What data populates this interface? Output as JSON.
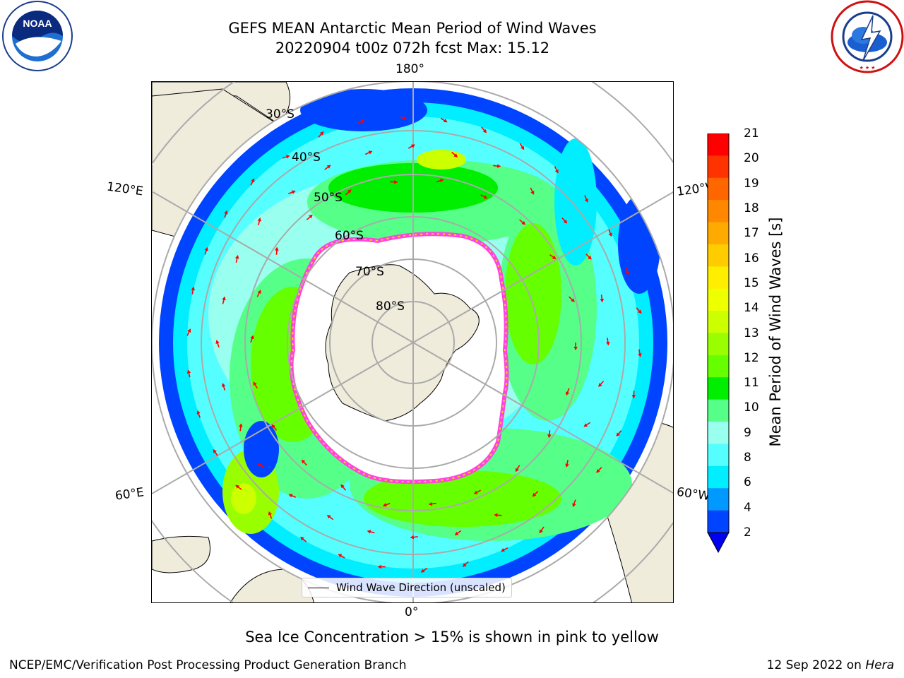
{
  "header": {
    "title_line1": "GEFS MEAN Antarctic Mean Period of Wind Waves",
    "title_line2": "20220904 t00z 072h fcst   Max: 15.12"
  },
  "logos": {
    "left": {
      "name": "NOAA",
      "ring_text": "NATIONAL OCEANIC AND ATMOSPHERIC ADMINISTRATION",
      "bottom_text": "U.S. DEPARTMENT OF COMMERCE"
    },
    "right": {
      "ring_text": "NATIONAL WEATHER SERVICE"
    }
  },
  "map": {
    "longitude_labels": {
      "top": "180°",
      "bottom": "0°",
      "upper_left": "120°E",
      "lower_left": "60°E",
      "upper_right": "120°W",
      "lower_right": "60°W"
    },
    "latitude_labels": [
      "30°S",
      "40°S",
      "50°S",
      "60°S",
      "70°S",
      "80°S"
    ],
    "legend_label": "Wind Wave Direction (unscaled)"
  },
  "colorbar": {
    "label": "Mean Period of Wind Waves [s]",
    "ticks": [
      "21",
      "20",
      "19",
      "18",
      "17",
      "16",
      "15",
      "14",
      "13",
      "12",
      "11",
      "10",
      "9",
      "8",
      "6",
      "4",
      "2"
    ],
    "colors": [
      "#ff0000",
      "#ff3300",
      "#ff6600",
      "#ff8800",
      "#ffaa00",
      "#ffcc00",
      "#ffee00",
      "#eeff00",
      "#ccff00",
      "#99ff00",
      "#66ff00",
      "#00ee00",
      "#55ff88",
      "#99ffee",
      "#55ffff",
      "#00eeff",
      "#0099ff",
      "#0044ff"
    ],
    "extend_color": "#0000ee"
  },
  "note": "Sea Ice Concentration > 15% is shown in pink to yellow",
  "footer": {
    "left": "NCEP/EMC/Verification Post Processing Product Generation Branch",
    "date": "12 Sep 2022 on",
    "machine": "Hera"
  }
}
